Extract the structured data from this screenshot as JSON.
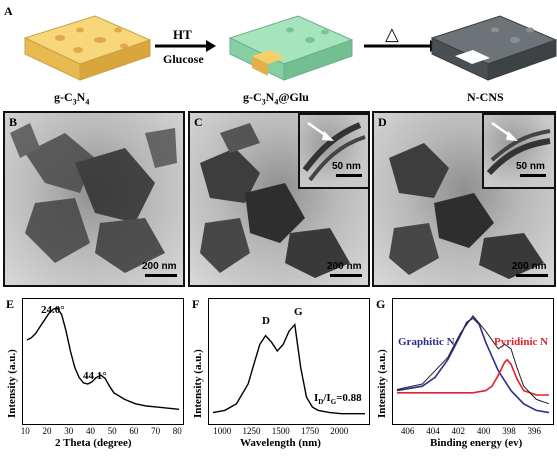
{
  "panel_letters": {
    "a": "A",
    "b": "B",
    "c": "C",
    "d": "D",
    "e": "E",
    "f": "F",
    "g": "G"
  },
  "scheme": {
    "step1_top": "HT",
    "step1_bottom": "Glucose",
    "step2_symbol": "△",
    "material1": "g-C3N4",
    "material2": "g-C3N4@Glu",
    "material3": "N-CNS",
    "colors": {
      "yellow": "#f5cf6a",
      "green": "#9ee0b6",
      "gray": "#555a5e"
    }
  },
  "tem": {
    "scale_main": "200 nm",
    "scale_inset": "50 nm"
  },
  "chart_data": [
    {
      "type": "line",
      "panel": "E",
      "xlabel": "2 Theta (degree)",
      "ylabel": "Intensity (a.u.)",
      "xlim": [
        10,
        80
      ],
      "xticks": [
        10,
        20,
        30,
        40,
        50,
        60,
        70,
        80
      ],
      "annotations": [
        "24.0°",
        "44.1°"
      ],
      "x": [
        10,
        12,
        14,
        16,
        18,
        20,
        22,
        24,
        26,
        28,
        30,
        32,
        34,
        36,
        38,
        40,
        42,
        44,
        46,
        48,
        50,
        55,
        60,
        65,
        70,
        75,
        80
      ],
      "y": [
        0.7,
        0.72,
        0.76,
        0.82,
        0.88,
        0.94,
        0.98,
        0.99,
        0.93,
        0.78,
        0.6,
        0.45,
        0.36,
        0.31,
        0.3,
        0.32,
        0.36,
        0.38,
        0.35,
        0.28,
        0.22,
        0.16,
        0.12,
        0.1,
        0.09,
        0.08,
        0.07
      ]
    },
    {
      "type": "line",
      "panel": "F",
      "xlabel": "Wavelength (nm)",
      "ylabel": "Intensity (a.u.)",
      "xlim": [
        900,
        2200
      ],
      "xticks": [
        1000,
        1250,
        1500,
        1750,
        2000
      ],
      "annotations": [
        "D",
        "G",
        "I",
        "D",
        "/I",
        "G",
        "=0.88"
      ],
      "x": [
        900,
        1000,
        1100,
        1200,
        1250,
        1300,
        1350,
        1400,
        1450,
        1500,
        1550,
        1600,
        1650,
        1700,
        1750,
        1800,
        1900,
        2000,
        2100,
        2200
      ],
      "y": [
        0.04,
        0.06,
        0.12,
        0.3,
        0.48,
        0.66,
        0.74,
        0.68,
        0.6,
        0.66,
        0.78,
        0.84,
        0.45,
        0.18,
        0.09,
        0.06,
        0.04,
        0.03,
        0.03,
        0.03
      ]
    },
    {
      "type": "line",
      "panel": "G",
      "xlabel": "Binding energy (ev)",
      "ylabel": "Intensity (a.u.)",
      "xlim": [
        407,
        395
      ],
      "xticks": [
        406,
        404,
        402,
        400,
        398,
        396
      ],
      "series": [
        {
          "name": "Graphitic N",
          "x": [
            407,
            405,
            404,
            403,
            402,
            401.5,
            401,
            400.5,
            400,
            399,
            398,
            397,
            396,
            395
          ],
          "y": [
            0.24,
            0.28,
            0.36,
            0.52,
            0.74,
            0.86,
            0.9,
            0.84,
            0.68,
            0.42,
            0.24,
            0.12,
            0.06,
            0.04
          ]
        },
        {
          "name": "Pyridinic N",
          "x": [
            407,
            401,
            400,
            399.5,
            399,
            398.5,
            398.3,
            398,
            397.5,
            397,
            396,
            395
          ],
          "y": [
            0.22,
            0.22,
            0.24,
            0.28,
            0.38,
            0.5,
            0.52,
            0.48,
            0.34,
            0.24,
            0.2,
            0.2
          ]
        }
      ]
    }
  ]
}
